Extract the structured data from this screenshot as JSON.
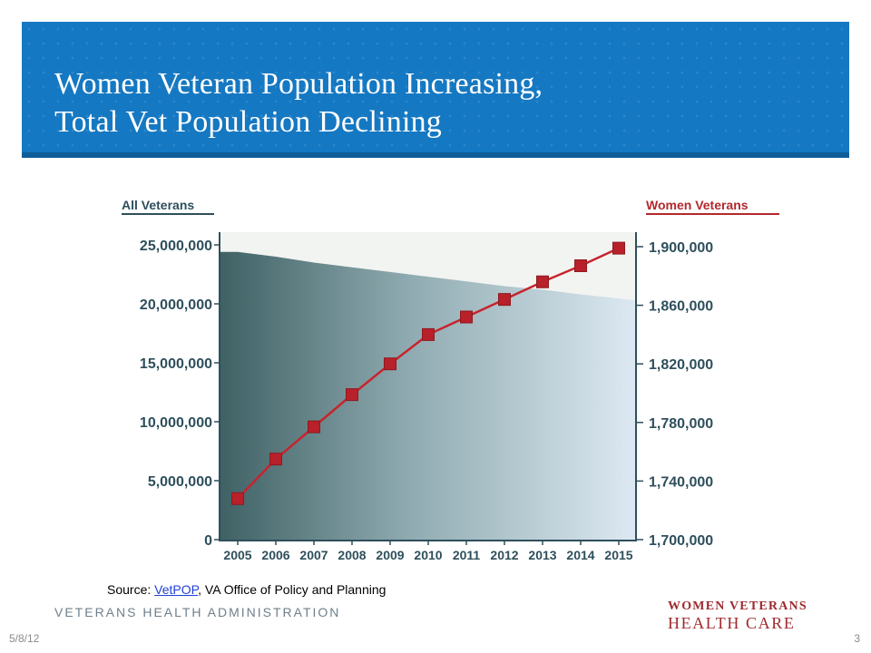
{
  "slide": {
    "title_line1": "Women Veteran Population Increasing,",
    "title_line2": "Total Vet Population Declining",
    "source_prefix": "Source: ",
    "source_link": "VetPOP",
    "source_suffix": ", VA Office of Policy and Planning",
    "org": "VETERANS HEALTH ADMINISTRATION",
    "logo_line1": "WOMEN VETERANS",
    "logo_line2": "HEALTH CARE",
    "date": "5/8/12",
    "page": "3"
  },
  "colors": {
    "banner": "#1578c2",
    "women_line": "#c8232c",
    "area_dark": "#3f6164",
    "area_light": "#dde9f2"
  },
  "chart_data": {
    "type": "area+line",
    "left_axis_title": "All Veterans",
    "right_axis_title": "Women Veterans",
    "categories": [
      "2005",
      "2006",
      "2007",
      "2008",
      "2009",
      "2010",
      "2011",
      "2012",
      "2013",
      "2014",
      "2015"
    ],
    "left_ticks": [
      "0",
      "5,000,000",
      "10,000,000",
      "15,000,000",
      "20,000,000",
      "25,000,000"
    ],
    "right_ticks": [
      "1,700,000",
      "1,740,000",
      "1,780,000",
      "1,820,000",
      "1,860,000",
      "1,900,000"
    ],
    "ylim_left": [
      0,
      25000000
    ],
    "ylim_right": [
      1700000,
      1900000
    ],
    "series": [
      {
        "name": "All Veterans",
        "axis": "left",
        "kind": "area",
        "values": [
          24400000,
          24000000,
          23500000,
          23100000,
          22700000,
          22300000,
          21900000,
          21500000,
          21200000,
          20800000,
          20300000
        ]
      },
      {
        "name": "Women Veterans",
        "axis": "right",
        "kind": "line",
        "values": [
          1728000,
          1755000,
          1777000,
          1799000,
          1820000,
          1840000,
          1852000,
          1864000,
          1876000,
          1887000,
          1899000
        ]
      }
    ]
  }
}
